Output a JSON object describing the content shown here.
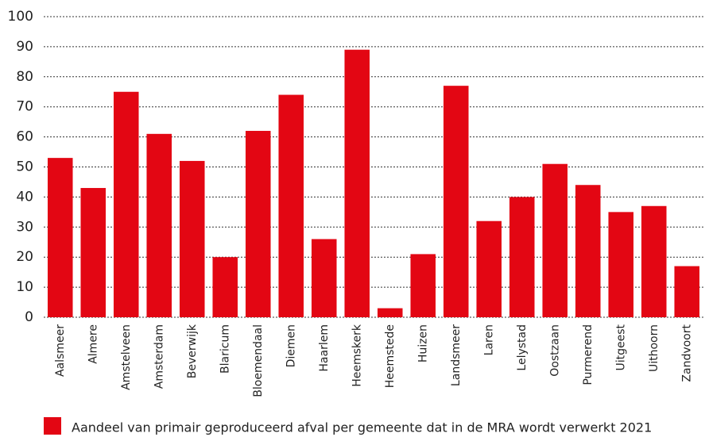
{
  "chart_data": {
    "type": "bar",
    "categories": [
      "Aalsmeer",
      "Almere",
      "Amstelveen",
      "Amsterdam",
      "Beverwijk",
      "Blaricum",
      "Bloemendaal",
      "Diemen",
      "Haarlem",
      "Heemskerk",
      "Heemstede",
      "Huizen",
      "Landsmeer",
      "Laren",
      "Lelystad",
      "Oostzaan",
      "Purmerend",
      "Uitgeest",
      "Uithoorn",
      "Zandvoort"
    ],
    "series": [
      {
        "name": "Aandeel van primair geproduceerd afval per gemeente dat in de MRA wordt verwerkt 2021",
        "color": "#e30613",
        "values": [
          53,
          43,
          75,
          61,
          52,
          20,
          62,
          74,
          26,
          89,
          3,
          21,
          77,
          32,
          40,
          51,
          44,
          35,
          37,
          17
        ]
      }
    ],
    "ylim": [
      0,
      100
    ],
    "yticks": [
      0,
      10,
      20,
      30,
      40,
      50,
      60,
      70,
      80,
      90,
      100
    ],
    "grid": true,
    "legend": "bottom"
  }
}
